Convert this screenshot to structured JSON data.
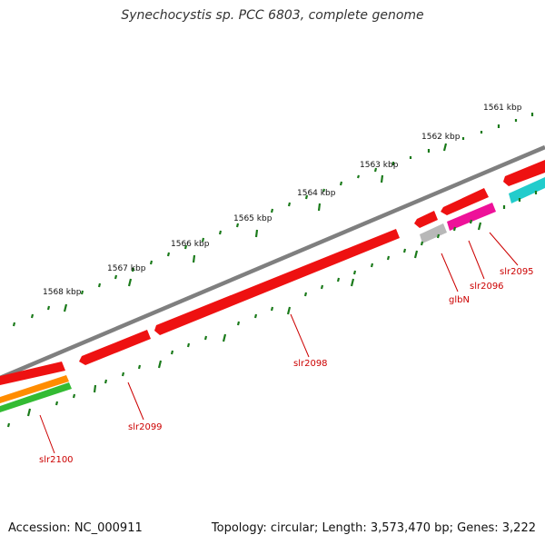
{
  "title": "Synechocystis sp. PCC 6803, complete genome",
  "footer": {
    "accession": "Accession: NC_000911",
    "summary": "Topology: circular; Length: 3,573,470 bp; Genes: 3,222"
  },
  "colors": {
    "backbone": "#808080",
    "gene_red": "#ee1111",
    "gene_orange": "#ff8c00",
    "gene_green": "#33bb33",
    "gene_grey": "#b8b8b8",
    "gene_magenta": "#ee1199",
    "gene_cyan": "#22cccc",
    "tick": "#1a7a1a",
    "label": "#cc0000"
  },
  "scale_labels": [
    "1561 kbp",
    "1562 kbp",
    "1563 kbp",
    "1564 kbp",
    "1565 kbp",
    "1566 kbp",
    "1567 kbp",
    "1568 kbp"
  ],
  "gene_labels": {
    "slr2095": "slr2095",
    "slr2096": "slr2096",
    "glbN": "glbN",
    "slr2098": "slr2098",
    "slr2099": "slr2099",
    "slr2100": "slr2100"
  }
}
